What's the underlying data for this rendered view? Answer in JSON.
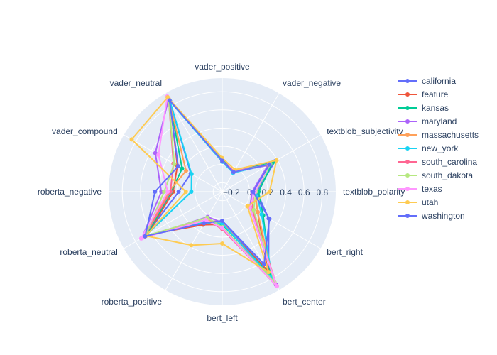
{
  "chart_data": {
    "type": "radar",
    "radial_range": [
      -0.3,
      0.95
    ],
    "radial_ticks": [
      -0.2,
      0,
      0.2,
      0.4,
      0.6,
      0.8
    ],
    "radial_tick_labels": [
      "−0.2",
      "0",
      "0.2",
      "0.4",
      "0.6",
      "0.8"
    ],
    "axes": [
      "textblob_polarity",
      "textblob_subjectivity",
      "vader_negative",
      "vader_positive",
      "vader_neutral",
      "vader_compound",
      "roberta_negative",
      "roberta_neutral",
      "roberta_positive",
      "bert_left",
      "bert_center",
      "bert_right"
    ],
    "axis_labels": [
      "textblob_polarity",
      "textblob_subjectivity",
      "vader_negative",
      "vader_positive",
      "vader_neutral",
      "vader_compound",
      "roberta_negative",
      "roberta_neutral",
      "roberta_positive",
      "bert_left",
      "bert_center",
      "bert_right"
    ],
    "grid": true,
    "legend_position": "top-right",
    "series": [
      {
        "name": "california",
        "color": "#636efa",
        "values": [
          0.08,
          0.37,
          -0.05,
          0.06,
          0.85,
          0.1,
          0.18,
          0.68,
          0.1,
          0.02,
          0.72,
          0.29
        ]
      },
      {
        "name": "feature",
        "color": "#EF553B",
        "values": [
          0.06,
          0.3,
          -0.05,
          0.04,
          0.85,
          0.27,
          0.24,
          0.65,
          0.12,
          0.06,
          0.7,
          0.15
        ]
      },
      {
        "name": "kansas",
        "color": "#00cc96",
        "values": [
          0.1,
          0.34,
          -0.05,
          0.05,
          0.86,
          0.21,
          0.26,
          0.66,
          0.09,
          0.06,
          0.76,
          0.22
        ]
      },
      {
        "name": "maryland",
        "color": "#ab63fa",
        "values": [
          0.03,
          0.28,
          -0.05,
          0.03,
          0.88,
          0.55,
          0.37,
          0.72,
          0.02,
          0.04,
          0.88,
          0.05
        ]
      },
      {
        "name": "massachusetts",
        "color": "#FFA15A",
        "values": [
          0.06,
          0.29,
          -0.05,
          0.04,
          0.87,
          0.16,
          0.29,
          0.69,
          0.06,
          0.04,
          0.83,
          0.15
        ]
      },
      {
        "name": "new_york",
        "color": "#19d3f3",
        "values": [
          0.07,
          0.31,
          -0.06,
          0.03,
          0.85,
          0.09,
          0.04,
          0.68,
          0.09,
          0.05,
          0.8,
          0.2
        ]
      },
      {
        "name": "south_carolina",
        "color": "#FF6692",
        "values": [
          0.05,
          0.3,
          -0.04,
          0.04,
          0.88,
          0.32,
          0.27,
          0.69,
          0.06,
          0.11,
          0.9,
          0.08
        ]
      },
      {
        "name": "south_dakota",
        "color": "#B6E880",
        "values": [
          0.07,
          0.31,
          -0.05,
          0.04,
          0.88,
          0.31,
          0.34,
          0.68,
          0.03,
          0.09,
          0.85,
          0.1
        ]
      },
      {
        "name": "texas",
        "color": "#FF97FF",
        "values": [
          0.06,
          0.3,
          -0.05,
          0.04,
          0.91,
          0.51,
          0.3,
          0.73,
          0.06,
          0.1,
          0.9,
          0.05
        ]
      },
      {
        "name": "utah",
        "color": "#FECB52",
        "values": [
          0.22,
          0.39,
          -0.02,
          0.07,
          0.9,
          0.85,
          0.1,
          0.67,
          0.38,
          0.27,
          0.72,
          0.02
        ]
      },
      {
        "name": "washington",
        "color": "#636efa",
        "values": [
          0.04,
          0.3,
          -0.05,
          0.04,
          0.86,
          0.26,
          0.44,
          0.68,
          0.1,
          0.02,
          0.62,
          0.3
        ]
      }
    ]
  }
}
